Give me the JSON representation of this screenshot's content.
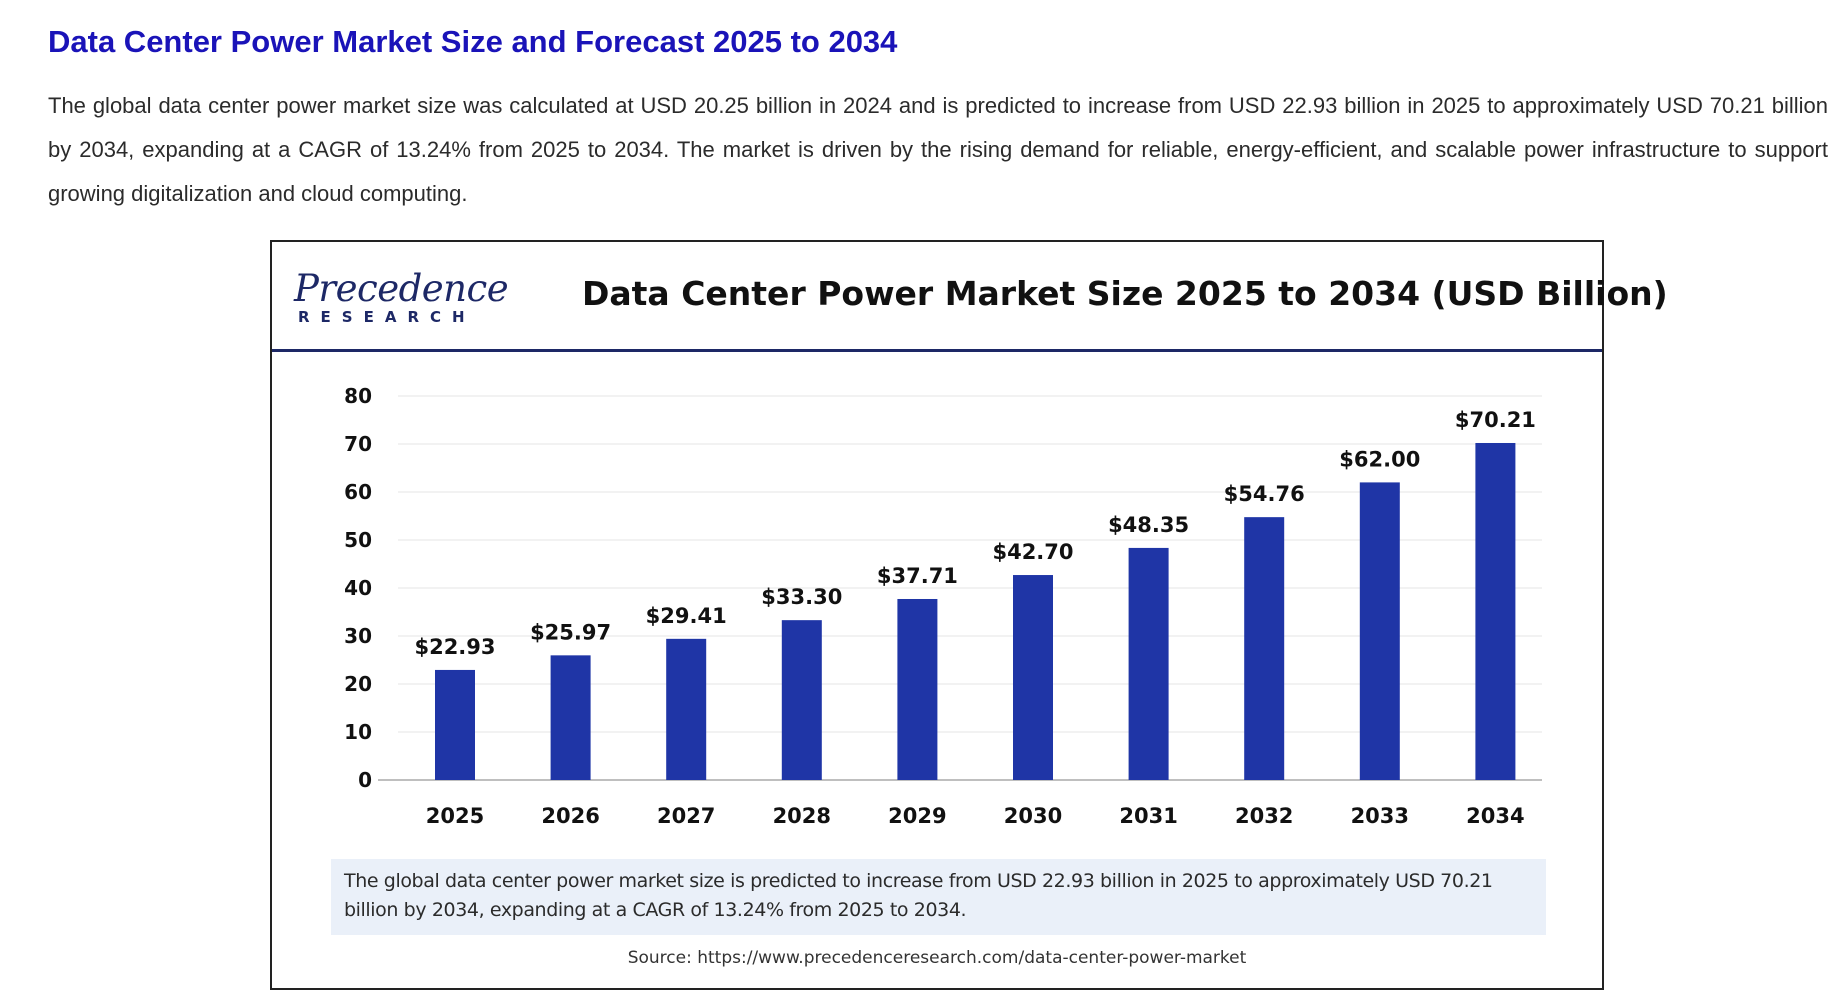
{
  "article": {
    "title": "Data Center Power Market Size and Forecast 2025 to 2034",
    "body": "The global data center power market size was calculated at USD 20.25 billion in 2024 and is predicted to increase from USD 22.93 billion in 2025 to approximately USD 70.21 billion by 2034, expanding at a CAGR of 13.24% from 2025 to 2034. The market is driven by the rising demand for reliable, energy-efficient, and scalable power infrastructure to support growing digitalization and cloud computing."
  },
  "figure": {
    "logo_top": "Precedence",
    "logo_bottom": "RESEARCH",
    "caption": "The global data center power market size is predicted to increase from USD 22.93 billion in 2025 to approximately USD 70.21 billion by 2034, expanding at a CAGR of 13.24% from 2025 to 2034.",
    "source": "Source: https://www.precedenceresearch.com/data-center-power-market"
  },
  "chart_data": {
    "type": "bar",
    "title": "Data Center Power Market Size 2025 to 2034 (USD Billion)",
    "categories": [
      "2025",
      "2026",
      "2027",
      "2028",
      "2029",
      "2030",
      "2031",
      "2032",
      "2033",
      "2034"
    ],
    "values": [
      22.93,
      25.97,
      29.41,
      33.3,
      37.71,
      42.7,
      48.35,
      54.76,
      62.0,
      70.21
    ],
    "data_labels": [
      "$22.93",
      "$25.97",
      "$29.41",
      "$33.30",
      "$37.71",
      "$42.70",
      "$48.35",
      "$54.76",
      "$62.00",
      "$70.21"
    ],
    "y_ticks": [
      0,
      10,
      20,
      30,
      40,
      50,
      60,
      70,
      80
    ],
    "ylim": [
      0,
      80
    ],
    "xlabel": "",
    "ylabel": "",
    "grid": true,
    "bar_color": "#1f35a6",
    "grid_color": "#e6e6e6",
    "axis_color": "#bfbfbf"
  }
}
